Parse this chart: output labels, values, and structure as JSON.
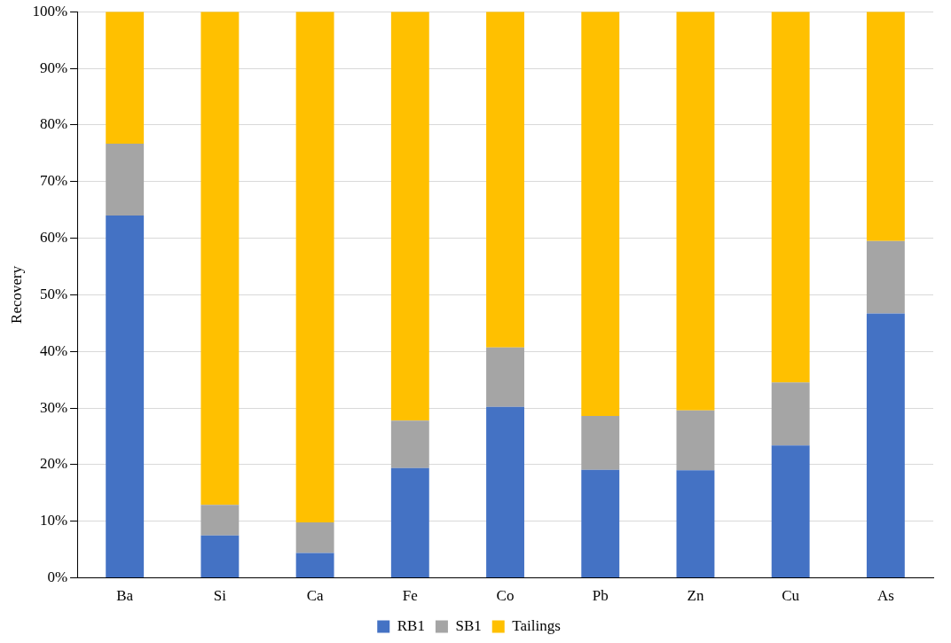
{
  "chart_data": {
    "type": "bar",
    "stacked": true,
    "ylabel": "Recovery",
    "categories": [
      "Ba",
      "Si",
      "Ca",
      "Fe",
      "Co",
      "Pb",
      "Zn",
      "Cu",
      "As"
    ],
    "series": [
      {
        "name": "RB1",
        "color": "#4472c4",
        "values": [
          64,
          7.5,
          4.4,
          19.4,
          30.2,
          19.1,
          19.0,
          23.4,
          46.7
        ]
      },
      {
        "name": "SB1",
        "color": "#a5a5a5",
        "values": [
          12.7,
          5.4,
          5.4,
          8.4,
          10.5,
          9.5,
          10.6,
          11.1,
          12.8
        ]
      },
      {
        "name": "Tailings",
        "color": "#ffc000",
        "values": [
          23.3,
          87.1,
          90.2,
          72.2,
          59.3,
          71.4,
          70.4,
          65.5,
          40.5
        ]
      }
    ],
    "ylim": [
      0,
      100
    ],
    "yticks": [
      {
        "value": 0,
        "label": "0%"
      },
      {
        "value": 10,
        "label": "10%"
      },
      {
        "value": 20,
        "label": "20%"
      },
      {
        "value": 30,
        "label": "30%"
      },
      {
        "value": 40,
        "label": "40%"
      },
      {
        "value": 50,
        "label": "50%"
      },
      {
        "value": 60,
        "label": "60%"
      },
      {
        "value": 70,
        "label": "70%"
      },
      {
        "value": 80,
        "label": "80%"
      },
      {
        "value": 90,
        "label": "90%"
      },
      {
        "value": 100,
        "label": "100%"
      }
    ],
    "grid": "y",
    "legend": "bottom"
  }
}
